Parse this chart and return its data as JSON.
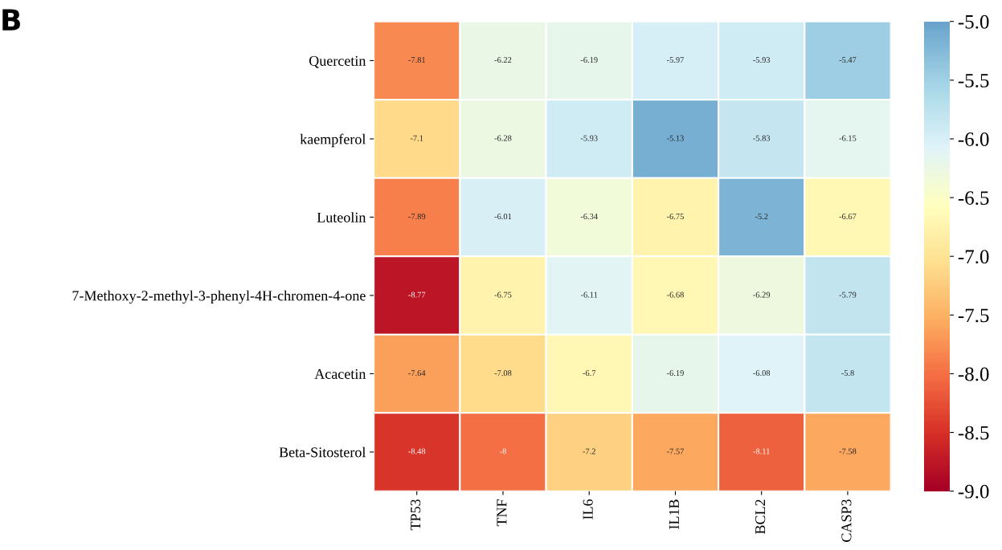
{
  "chart_data": {
    "type": "heatmap",
    "categories": [
      "TP53",
      "TNF",
      "IL6",
      "IL1B",
      "BCL2",
      "CASP3"
    ],
    "y_categories": [
      "Quercetin",
      "kaempferol",
      "Luteolin",
      "7-Methoxy-2-methyl-3-phenyl-4H-chromen-4-one",
      "Acacetin",
      "Beta-Sitosterol"
    ],
    "cells": [
      [
        -7.81,
        -6.22,
        -6.19,
        -5.97,
        -5.93,
        -5.47
      ],
      [
        -7.1,
        -6.28,
        -5.93,
        -5.13,
        -5.83,
        -6.15
      ],
      [
        -7.89,
        -6.01,
        -6.34,
        -6.75,
        -5.2,
        -6.67
      ],
      [
        -8.77,
        -6.75,
        -6.11,
        -6.68,
        -6.29,
        -5.79
      ],
      [
        -7.64,
        -7.08,
        -6.7,
        -6.19,
        -6.08,
        -5.8
      ],
      [
        -8.48,
        -8,
        -7.2,
        -7.57,
        -8.11,
        -7.58
      ]
    ],
    "data_labels": true,
    "clim": [
      -9.0,
      -5.0
    ],
    "cticks": [
      {
        "value": -5.0,
        "label": "-5.0"
      },
      {
        "value": -5.5,
        "label": "-5.5"
      },
      {
        "value": -6.0,
        "label": "-6.0"
      },
      {
        "value": -6.5,
        "label": "-6.5"
      },
      {
        "value": -7.0,
        "label": "-7.0"
      },
      {
        "value": -7.5,
        "label": "-7.5"
      },
      {
        "value": -8.0,
        "label": "-8.0"
      },
      {
        "value": -8.5,
        "label": "-8.5"
      },
      {
        "value": -9.0,
        "label": "-9.0"
      }
    ],
    "annotations": [
      "B"
    ]
  }
}
